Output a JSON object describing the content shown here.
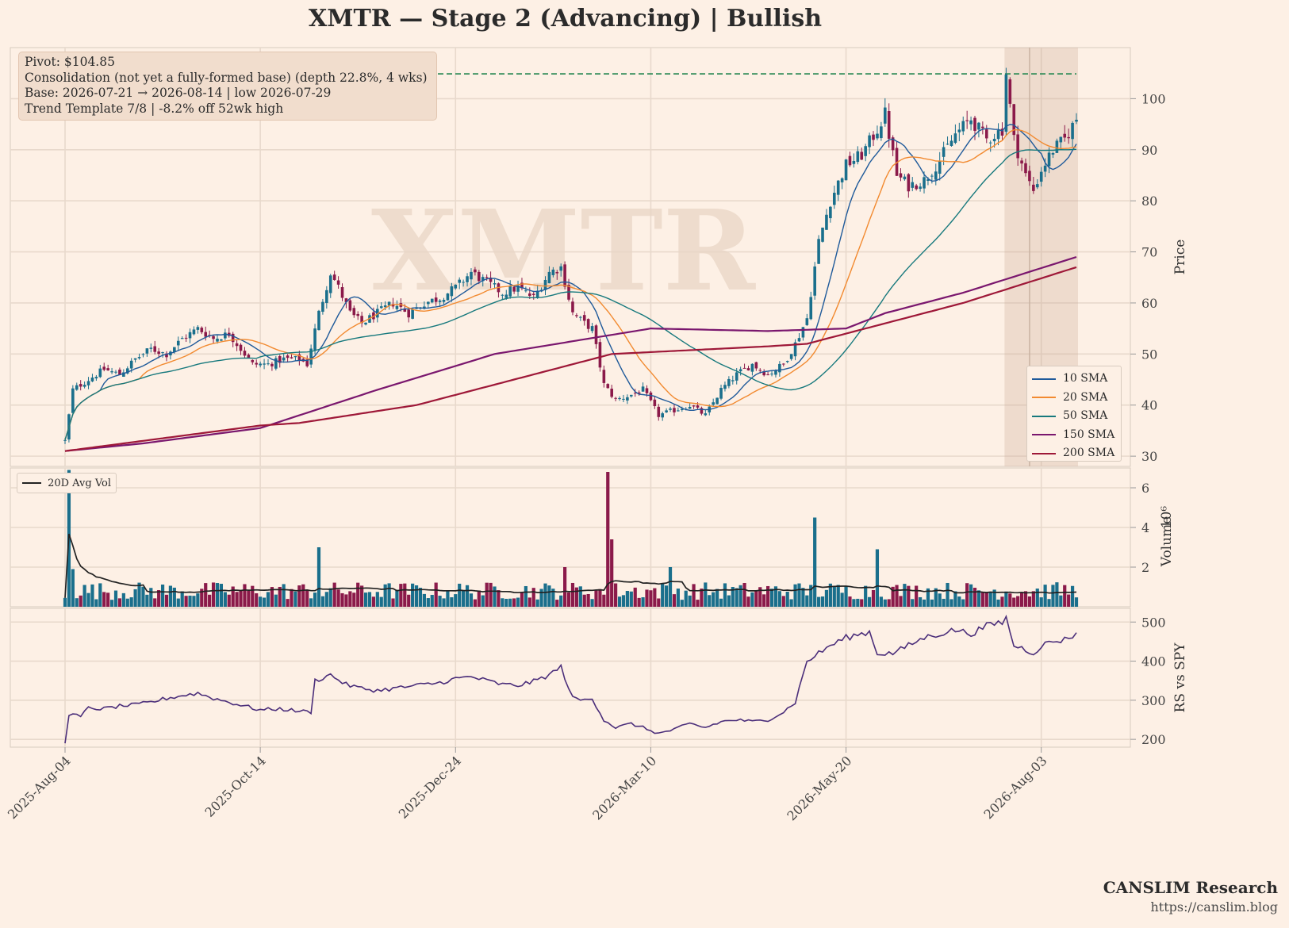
{
  "title": "XMTR  —  Stage 2 (Advancing)  |  Bullish",
  "watermark": "XMTR",
  "info_box": {
    "lines": [
      "Pivot: $104.85",
      "Consolidation (not yet a fully-formed base)  (depth 22.8%, 4 wks)",
      "Base: 2026-07-21 → 2026-08-14  |  low 2026-07-29",
      "Trend Template 7/8  |  -8.2% off 52wk high"
    ]
  },
  "brand": {
    "name": "CANSLIM Research",
    "url": "https://canslim.blog"
  },
  "colors": {
    "background": "#fdf0e5",
    "grid": "#e8d9cc",
    "up": "#1a6f8c",
    "down": "#8b1a4a",
    "pivot": "#2e8b57",
    "base_shade": "#c8a78e",
    "rs_line": "#4b2e7a"
  },
  "chart_data": [
    {
      "type": "candlestick",
      "panel": "price",
      "ylabel": "Price",
      "ylim": [
        28,
        110
      ],
      "yticks": [
        30,
        40,
        50,
        60,
        70,
        80,
        90,
        100
      ],
      "x_tick_labels": [
        "2025-Aug-04",
        "2025-Oct-14",
        "2025-Dec-24",
        "2026-Mar-10",
        "2026-May-20",
        "2026-Aug-03"
      ],
      "x_tick_index": [
        0,
        50,
        100,
        150,
        200,
        250
      ],
      "num_bars": 260,
      "pivot_line": 104.85,
      "base_region_index": [
        241,
        259
      ],
      "base_low_index": 247,
      "price_anchors": [
        [
          0,
          33
        ],
        [
          2,
          43
        ],
        [
          6,
          45
        ],
        [
          10,
          47
        ],
        [
          14,
          46
        ],
        [
          18,
          49
        ],
        [
          22,
          51
        ],
        [
          26,
          50
        ],
        [
          30,
          53
        ],
        [
          34,
          55
        ],
        [
          38,
          53
        ],
        [
          42,
          54
        ],
        [
          46,
          50
        ],
        [
          48,
          48
        ],
        [
          52,
          48
        ],
        [
          56,
          49
        ],
        [
          60,
          49
        ],
        [
          62,
          48
        ],
        [
          65,
          58
        ],
        [
          68,
          66
        ],
        [
          70,
          63
        ],
        [
          73,
          58
        ],
        [
          76,
          56
        ],
        [
          80,
          58
        ],
        [
          84,
          60
        ],
        [
          88,
          58
        ],
        [
          92,
          60
        ],
        [
          96,
          61
        ],
        [
          100,
          63
        ],
        [
          104,
          66
        ],
        [
          108,
          64
        ],
        [
          112,
          62
        ],
        [
          116,
          63
        ],
        [
          120,
          61
        ],
        [
          124,
          66
        ],
        [
          127,
          67
        ],
        [
          130,
          58
        ],
        [
          133,
          56
        ],
        [
          135,
          55
        ],
        [
          138,
          44
        ],
        [
          141,
          41
        ],
        [
          145,
          42
        ],
        [
          148,
          43
        ],
        [
          152,
          38
        ],
        [
          156,
          39
        ],
        [
          160,
          40
        ],
        [
          164,
          38
        ],
        [
          168,
          43
        ],
        [
          172,
          46
        ],
        [
          176,
          48
        ],
        [
          180,
          46
        ],
        [
          184,
          48
        ],
        [
          187,
          52
        ],
        [
          190,
          57
        ],
        [
          193,
          72
        ],
        [
          196,
          80
        ],
        [
          200,
          87
        ],
        [
          204,
          89
        ],
        [
          208,
          94
        ],
        [
          210,
          97
        ],
        [
          213,
          85
        ],
        [
          216,
          83
        ],
        [
          220,
          84
        ],
        [
          224,
          88
        ],
        [
          228,
          93
        ],
        [
          232,
          96
        ],
        [
          236,
          92
        ],
        [
          240,
          94
        ],
        [
          241,
          105
        ],
        [
          243,
          92
        ],
        [
          246,
          85
        ],
        [
          248,
          82
        ],
        [
          250,
          86
        ],
        [
          253,
          90
        ],
        [
          256,
          92
        ],
        [
          259,
          96
        ]
      ],
      "series": [
        {
          "name": "10 SMA",
          "color": "#1f5a9a",
          "window": 10
        },
        {
          "name": "20 SMA",
          "color": "#f28a30",
          "window": 20
        },
        {
          "name": "50 SMA",
          "color": "#17797d",
          "window": 50
        },
        {
          "name": "150 SMA",
          "color": "#7a176e",
          "window": 150
        },
        {
          "name": "200 SMA",
          "color": "#9e1838",
          "window": 200
        }
      ],
      "ma_anchors": {
        "150 SMA": [
          [
            0,
            31
          ],
          [
            20,
            32.5
          ],
          [
            50,
            35.5
          ],
          [
            80,
            43
          ],
          [
            110,
            50
          ],
          [
            150,
            55
          ],
          [
            180,
            54.5
          ],
          [
            200,
            55
          ],
          [
            210,
            58
          ],
          [
            230,
            62
          ],
          [
            259,
            69
          ]
        ],
        "200 SMA": [
          [
            0,
            31
          ],
          [
            20,
            33
          ],
          [
            50,
            36
          ],
          [
            60,
            36.5
          ],
          [
            90,
            40
          ],
          [
            120,
            46
          ],
          [
            140,
            50
          ],
          [
            180,
            51.5
          ],
          [
            190,
            52
          ],
          [
            210,
            56
          ],
          [
            230,
            60
          ],
          [
            259,
            67
          ]
        ]
      }
    },
    {
      "type": "bar",
      "panel": "volume",
      "ylabel": "Volume",
      "scale_label": "1e6",
      "ylim": [
        0,
        7
      ],
      "yticks": [
        2,
        4,
        6
      ],
      "legend": [
        "20D Avg Vol"
      ],
      "spikes": [
        [
          1,
          6.9
        ],
        [
          2,
          1.9
        ],
        [
          65,
          3.0
        ],
        [
          139,
          6.8
        ],
        [
          140,
          3.4
        ],
        [
          192,
          4.5
        ],
        [
          208,
          2.9
        ],
        [
          128,
          2.0
        ],
        [
          155,
          2.0
        ]
      ]
    },
    {
      "type": "line",
      "panel": "rs",
      "ylabel": "RS vs SPY",
      "ylim": [
        180,
        535
      ],
      "yticks": [
        200,
        300,
        400,
        500
      ],
      "series": [
        {
          "name": "RS vs SPY"
        }
      ],
      "rs_anchors": [
        [
          0,
          190
        ],
        [
          1,
          265
        ],
        [
          4,
          258
        ],
        [
          6,
          280
        ],
        [
          10,
          278
        ],
        [
          14,
          285
        ],
        [
          18,
          288
        ],
        [
          22,
          295
        ],
        [
          26,
          305
        ],
        [
          30,
          312
        ],
        [
          34,
          318
        ],
        [
          38,
          305
        ],
        [
          42,
          295
        ],
        [
          46,
          285
        ],
        [
          50,
          275
        ],
        [
          55,
          278
        ],
        [
          60,
          272
        ],
        [
          63,
          270
        ],
        [
          64,
          350
        ],
        [
          68,
          365
        ],
        [
          72,
          340
        ],
        [
          76,
          330
        ],
        [
          80,
          325
        ],
        [
          84,
          330
        ],
        [
          88,
          335
        ],
        [
          92,
          340
        ],
        [
          96,
          345
        ],
        [
          100,
          355
        ],
        [
          104,
          360
        ],
        [
          108,
          350
        ],
        [
          112,
          340
        ],
        [
          116,
          338
        ],
        [
          120,
          348
        ],
        [
          124,
          365
        ],
        [
          127,
          385
        ],
        [
          130,
          305
        ],
        [
          133,
          300
        ],
        [
          135,
          305
        ],
        [
          138,
          250
        ],
        [
          141,
          230
        ],
        [
          145,
          240
        ],
        [
          148,
          230
        ],
        [
          152,
          215
        ],
        [
          156,
          225
        ],
        [
          160,
          240
        ],
        [
          164,
          230
        ],
        [
          168,
          245
        ],
        [
          172,
          250
        ],
        [
          176,
          245
        ],
        [
          180,
          250
        ],
        [
          184,
          270
        ],
        [
          187,
          295
        ],
        [
          190,
          400
        ],
        [
          193,
          420
        ],
        [
          196,
          440
        ],
        [
          200,
          460
        ],
        [
          204,
          470
        ],
        [
          206,
          475
        ],
        [
          208,
          420
        ],
        [
          212,
          420
        ],
        [
          216,
          440
        ],
        [
          220,
          460
        ],
        [
          224,
          470
        ],
        [
          228,
          480
        ],
        [
          232,
          470
        ],
        [
          236,
          490
        ],
        [
          240,
          500
        ],
        [
          241,
          510
        ],
        [
          243,
          440
        ],
        [
          246,
          430
        ],
        [
          248,
          420
        ],
        [
          250,
          440
        ],
        [
          253,
          450
        ],
        [
          256,
          455
        ],
        [
          259,
          470
        ]
      ]
    }
  ]
}
